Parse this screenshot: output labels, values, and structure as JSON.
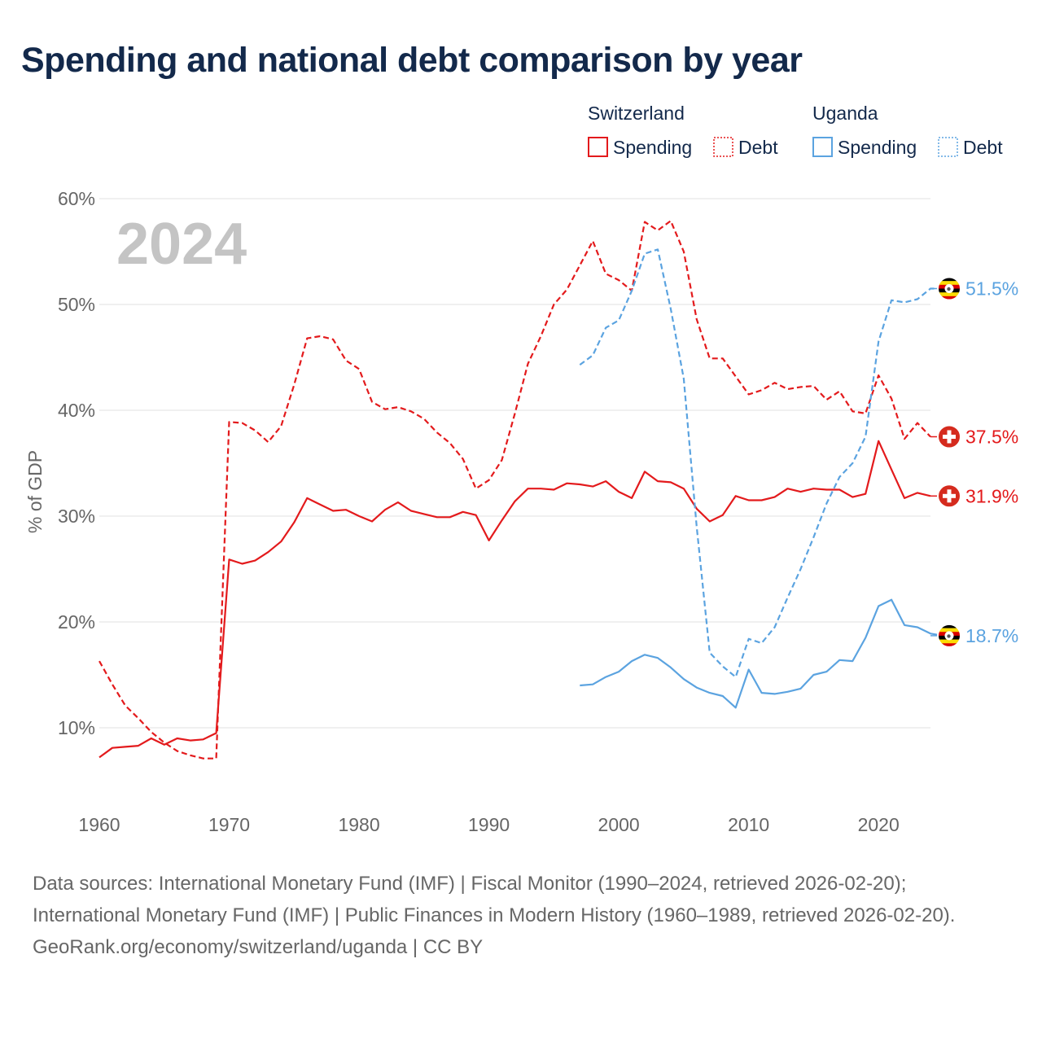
{
  "title": "Spending and national debt comparison by year",
  "colors": {
    "switzerland": "#e31a1c",
    "uganda": "#5ba3e0",
    "grid": "#e6e6e6",
    "axis_text": "#666666",
    "year_label": "#c4c4c4",
    "title": "#13294b"
  },
  "legend": {
    "groups": [
      {
        "name": "Switzerland",
        "items": [
          {
            "label": "Spending",
            "style": "solid"
          },
          {
            "label": "Debt",
            "style": "dotted"
          }
        ]
      },
      {
        "name": "Uganda",
        "items": [
          {
            "label": "Spending",
            "style": "solid"
          },
          {
            "label": "Debt",
            "style": "dotted"
          }
        ]
      }
    ]
  },
  "year_label": "2024",
  "sources": {
    "line1": "Data sources: International Monetary Fund (IMF) | Fiscal Monitor (1990–2024, retrieved 2026-02-20); International Monetary Fund (IMF) | Public Finances in Modern History (1960–1989, retrieved 2026-02-20).",
    "line2": "GeoRank.org/economy/switzerland/uganda | CC BY"
  },
  "chart_data": {
    "type": "line",
    "title": "Spending and national debt comparison by year",
    "xlabel": "",
    "ylabel": "% of GDP",
    "xlim": [
      1960,
      2024
    ],
    "ylim": [
      5,
      60
    ],
    "x_ticks": [
      1960,
      1970,
      1980,
      1990,
      2000,
      2010,
      2020
    ],
    "y_ticks": [
      10,
      20,
      30,
      40,
      50,
      60
    ],
    "y_tick_suffix": "%",
    "grid": true,
    "legend_position": "top-right",
    "series": [
      {
        "name": "Switzerland Spending",
        "country": "switzerland",
        "style": "solid",
        "start": 1960,
        "end_label": "31.9%",
        "values": [
          7.2,
          8.1,
          8.2,
          8.3,
          9.0,
          8.4,
          9.0,
          8.8,
          8.9,
          9.5,
          25.9,
          25.5,
          25.8,
          26.6,
          27.6,
          29.4,
          31.7,
          31.1,
          30.5,
          30.6,
          30.0,
          29.5,
          30.6,
          31.3,
          30.5,
          30.2,
          29.9,
          29.9,
          30.4,
          30.1,
          27.7,
          29.6,
          31.4,
          32.6,
          32.6,
          32.5,
          33.1,
          33.0,
          32.8,
          33.3,
          32.3,
          31.7,
          34.2,
          33.3,
          33.2,
          32.6,
          30.7,
          29.5,
          30.1,
          31.9,
          31.5,
          31.5,
          31.8,
          32.6,
          32.3,
          32.6,
          32.5,
          32.5,
          31.8,
          32.1,
          37.1,
          34.4,
          31.7,
          32.2,
          31.9
        ]
      },
      {
        "name": "Switzerland Debt",
        "country": "switzerland",
        "style": "dashed",
        "start": 1960,
        "end_label": "37.5%",
        "values": [
          16.3,
          14.1,
          12.1,
          10.9,
          9.6,
          8.6,
          7.8,
          7.4,
          7.1,
          7.1,
          38.9,
          38.8,
          38.1,
          37.0,
          38.5,
          42.4,
          46.8,
          47.0,
          46.7,
          44.7,
          43.9,
          40.8,
          40.1,
          40.3,
          39.9,
          39.2,
          37.9,
          36.9,
          35.4,
          32.6,
          33.4,
          35.3,
          39.7,
          44.4,
          47.0,
          50.0,
          51.4,
          53.7,
          56.0,
          52.9,
          52.3,
          51.3,
          57.8,
          57.0,
          57.9,
          55.0,
          48.6,
          44.9,
          44.9,
          43.2,
          41.5,
          41.9,
          42.6,
          42.0,
          42.2,
          42.3,
          41.0,
          41.8,
          39.9,
          39.7,
          43.3,
          41.1,
          37.3,
          38.8,
          37.5
        ]
      },
      {
        "name": "Uganda Spending",
        "country": "uganda",
        "style": "solid",
        "start": 1997,
        "end_label": "18.7%",
        "values": [
          14.0,
          14.1,
          14.8,
          15.3,
          16.3,
          16.9,
          16.6,
          15.7,
          14.6,
          13.8,
          13.3,
          13.0,
          11.9,
          15.5,
          13.3,
          13.2,
          13.4,
          13.7,
          15.0,
          15.3,
          16.4,
          16.3,
          18.5,
          21.5,
          22.1,
          19.7,
          19.5,
          18.9,
          18.7
        ]
      },
      {
        "name": "Uganda Debt",
        "country": "uganda",
        "style": "dashed",
        "start": 1997,
        "end_label": "51.5%",
        "values": [
          44.3,
          45.2,
          47.8,
          48.5,
          51.3,
          54.8,
          55.2,
          49.6,
          43.0,
          29.0,
          17.1,
          15.8,
          14.8,
          18.4,
          18.0,
          19.5,
          22.3,
          25.0,
          28.0,
          31.2,
          33.7,
          35.0,
          37.5,
          46.5,
          50.4,
          50.2,
          50.5,
          51.5,
          51.5
        ]
      }
    ]
  }
}
